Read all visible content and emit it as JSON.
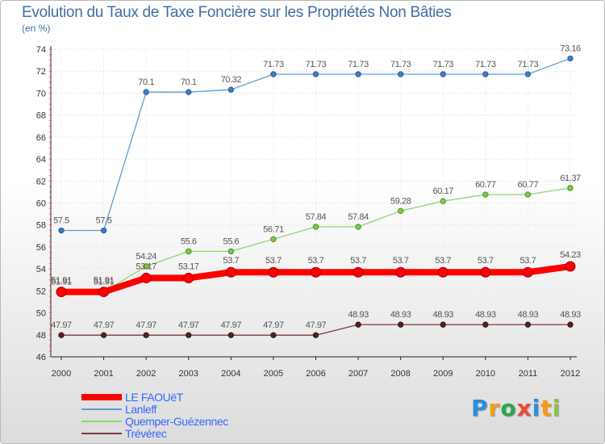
{
  "title": "Evolution du Taux de Taxe Foncière sur les Propriétés Non Bâties",
  "unit_label": "(en %)",
  "logo": {
    "letters": [
      "P",
      "r",
      "o",
      "x",
      "i",
      "t",
      "i"
    ],
    "colors": [
      "#2b8fd8",
      "#f39c12",
      "#2ba84a",
      "#e74c3c",
      "#2b8fd8",
      "#f39c12",
      "#8bc34a"
    ]
  },
  "chart_data": {
    "type": "line",
    "title": "Evolution du Taux de Taxe Foncière sur les Propriétés Non Bâties",
    "ylabel": "(en %)",
    "xlabel": "",
    "ylim": [
      46,
      74
    ],
    "yticks": [
      46,
      48,
      50,
      52,
      54,
      56,
      58,
      60,
      62,
      64,
      66,
      68,
      70,
      72,
      74
    ],
    "grid": true,
    "x": [
      "2000",
      "2001",
      "2002",
      "2003",
      "2004",
      "2005",
      "2006",
      "2007",
      "2008",
      "2009",
      "2010",
      "2011",
      "2012"
    ],
    "series": [
      {
        "name": "LE FAOUëT",
        "color": "#ff0000",
        "values": [
          51.91,
          51.91,
          53.17,
          53.17,
          53.7,
          53.7,
          53.7,
          53.7,
          53.7,
          53.7,
          53.7,
          53.7,
          54.23
        ],
        "labels": [
          "51.91",
          "51.91",
          "53.17",
          "53.17",
          "53.7",
          "53.7",
          "53.7",
          "53.7",
          "53.7",
          "53.7",
          "53.7",
          "53.7",
          "54.23"
        ]
      },
      {
        "name": "Lanleff",
        "color": "#5b9bd5",
        "values": [
          57.5,
          57.5,
          70.1,
          70.1,
          70.32,
          71.73,
          71.73,
          71.73,
          71.73,
          71.73,
          71.73,
          71.73,
          73.16
        ],
        "labels": [
          "57.5",
          "57.5",
          "70.1",
          "70.1",
          "70.32",
          "71.73",
          "71.73",
          "71.73",
          "71.73",
          "71.73",
          "71.73",
          "71.73",
          "73.16"
        ]
      },
      {
        "name": "Quemper-Guézennec",
        "color": "#8fd66c",
        "values": [
          51.91,
          51.91,
          54.24,
          55.6,
          55.6,
          56.71,
          57.84,
          57.84,
          59.28,
          60.17,
          60.77,
          60.77,
          61.37
        ],
        "labels": [
          "51.91",
          "51.91",
          "54.24",
          "55.6",
          "55.6",
          "56.71",
          "57.84",
          "57.84",
          "59.28",
          "60.17",
          "60.77",
          "60.77",
          "61.37"
        ]
      },
      {
        "name": "Trévérec",
        "color": "#7b3a3a",
        "values": [
          47.97,
          47.97,
          47.97,
          47.97,
          47.97,
          47.97,
          47.97,
          48.93,
          48.93,
          48.93,
          48.93,
          48.93,
          48.93
        ],
        "labels": [
          "47.97",
          "47.97",
          "47.97",
          "47.97",
          "47.97",
          "47.97",
          "47.97",
          "48.93",
          "48.93",
          "48.93",
          "48.93",
          "48.93",
          "48.93"
        ]
      }
    ]
  }
}
